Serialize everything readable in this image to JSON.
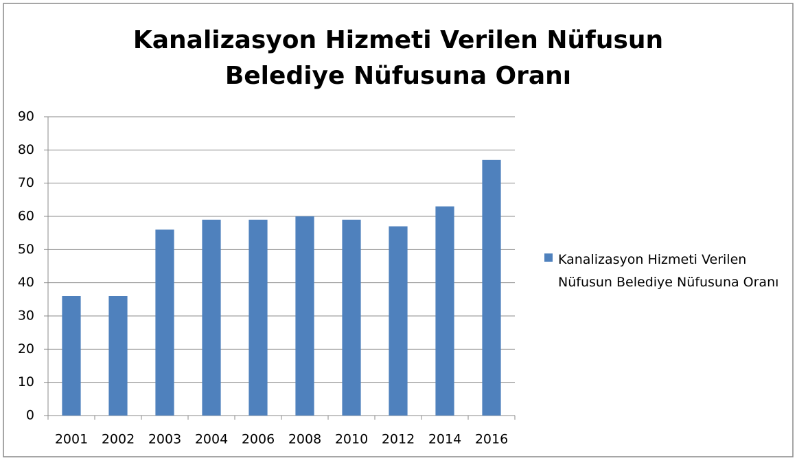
{
  "chart_data": {
    "type": "bar",
    "title": [
      "Kanalizasyon Hizmeti Verilen Nüfusun",
      "Belediye Nüfusuna Oranı"
    ],
    "categories": [
      "2001",
      "2002",
      "2003",
      "2004",
      "2006",
      "2008",
      "2010",
      "2012",
      "2014",
      "2016"
    ],
    "series": [
      {
        "name": "Kanalizasyon Hizmeti Verilen Nüfusun Belediye Nüfusuna Oranı",
        "color": "#4f81bd",
        "values": [
          36,
          36,
          56,
          59,
          59,
          60,
          59,
          57,
          63,
          77
        ]
      }
    ],
    "ylim": [
      0,
      90
    ],
    "yticks": [
      0,
      10,
      20,
      30,
      40,
      50,
      60,
      70,
      80,
      90
    ],
    "grid": true,
    "legend": "right"
  }
}
